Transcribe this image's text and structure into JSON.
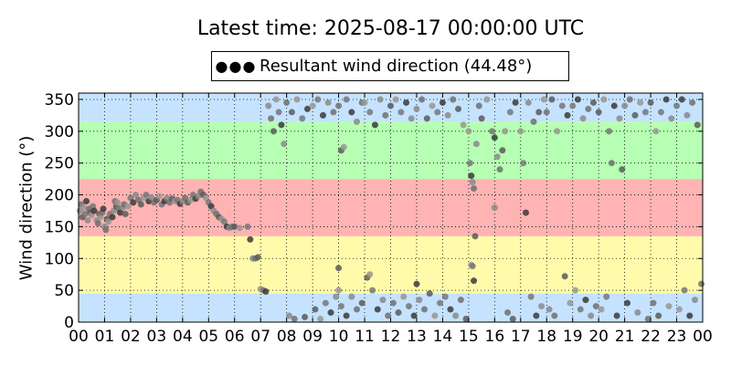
{
  "chart_data": {
    "type": "scatter",
    "title": "Latest time: 2025-08-17 00:00:00 UTC",
    "xlabel": "",
    "ylabel": "Wind direction (°)",
    "xlim": [
      0,
      24
    ],
    "ylim": [
      0,
      360
    ],
    "grid": true,
    "legend_position": "top-center",
    "xtick_labels": [
      "00",
      "01",
      "02",
      "03",
      "04",
      "05",
      "06",
      "07",
      "08",
      "09",
      "10",
      "11",
      "12",
      "13",
      "14",
      "15",
      "16",
      "17",
      "18",
      "19",
      "20",
      "21",
      "22",
      "23",
      "00"
    ],
    "yticks": [
      0,
      50,
      100,
      150,
      200,
      250,
      300,
      350
    ],
    "background_bands": [
      {
        "from": 0,
        "to": 45,
        "color": "#c5e3ff"
      },
      {
        "from": 45,
        "to": 135,
        "color": "#fffbaa"
      },
      {
        "from": 135,
        "to": 225,
        "color": "#ffb3b3"
      },
      {
        "from": 225,
        "to": 315,
        "color": "#b6ffb3"
      },
      {
        "from": 315,
        "to": 360,
        "color": "#c5e3ff"
      }
    ],
    "series": [
      {
        "name": "Resultant wind direction (44.48°)",
        "marker_color": "#6e6e6e",
        "points": [
          [
            0.05,
            175
          ],
          [
            0.1,
            185
          ],
          [
            0.15,
            165
          ],
          [
            0.2,
            180
          ],
          [
            0.25,
            170
          ],
          [
            0.3,
            190
          ],
          [
            0.35,
            160
          ],
          [
            0.4,
            178
          ],
          [
            0.45,
            172
          ],
          [
            0.5,
            168
          ],
          [
            0.55,
            182
          ],
          [
            0.6,
            175
          ],
          [
            0.7,
            160
          ],
          [
            0.75,
            155
          ],
          [
            0.8,
            170
          ],
          [
            0.85,
            165
          ],
          [
            0.9,
            172
          ],
          [
            0.95,
            178
          ],
          [
            1.0,
            150
          ],
          [
            1.05,
            145
          ],
          [
            1.1,
            162
          ],
          [
            1.15,
            158
          ],
          [
            1.2,
            170
          ],
          [
            1.3,
            165
          ],
          [
            1.35,
            175
          ],
          [
            1.4,
            190
          ],
          [
            1.45,
            182
          ],
          [
            1.5,
            188
          ],
          [
            1.55,
            178
          ],
          [
            1.6,
            172
          ],
          [
            1.7,
            180
          ],
          [
            1.75,
            185
          ],
          [
            1.8,
            170
          ],
          [
            1.9,
            182
          ],
          [
            2.0,
            195
          ],
          [
            2.1,
            188
          ],
          [
            2.2,
            200
          ],
          [
            2.3,
            192
          ],
          [
            2.4,
            185
          ],
          [
            2.5,
            195
          ],
          [
            2.6,
            200
          ],
          [
            2.7,
            190
          ],
          [
            2.8,
            196
          ],
          [
            2.9,
            188
          ],
          [
            3.0,
            192
          ],
          [
            3.1,
            198
          ],
          [
            3.2,
            185
          ],
          [
            3.3,
            190
          ],
          [
            3.4,
            195
          ],
          [
            3.5,
            188
          ],
          [
            3.6,
            194
          ],
          [
            3.7,
            190
          ],
          [
            3.8,
            192
          ],
          [
            3.9,
            186
          ],
          [
            4.0,
            190
          ],
          [
            4.1,
            195
          ],
          [
            4.2,
            188
          ],
          [
            4.3,
            192
          ],
          [
            4.4,
            200
          ],
          [
            4.5,
            194
          ],
          [
            4.6,
            198
          ],
          [
            4.7,
            205
          ],
          [
            4.8,
            200
          ],
          [
            4.9,
            195
          ],
          [
            5.0,
            188
          ],
          [
            5.1,
            182
          ],
          [
            5.2,
            175
          ],
          [
            5.3,
            170
          ],
          [
            5.4,
            165
          ],
          [
            5.5,
            162
          ],
          [
            5.6,
            158
          ],
          [
            5.7,
            150
          ],
          [
            5.8,
            148
          ],
          [
            5.9,
            150
          ],
          [
            6.0,
            150
          ],
          [
            6.2,
            148
          ],
          [
            6.5,
            150
          ],
          [
            6.6,
            130
          ],
          [
            6.7,
            100
          ],
          [
            6.8,
            100
          ],
          [
            6.9,
            102
          ],
          [
            7.0,
            52
          ],
          [
            7.1,
            50
          ],
          [
            7.2,
            48
          ],
          [
            7.3,
            340
          ],
          [
            7.4,
            320
          ],
          [
            7.5,
            300
          ],
          [
            7.6,
            350
          ],
          [
            7.7,
            330
          ],
          [
            7.8,
            310
          ],
          [
            7.9,
            280
          ],
          [
            8.0,
            345
          ],
          [
            8.2,
            330
          ],
          [
            8.4,
            350
          ],
          [
            8.6,
            320
          ],
          [
            8.8,
            335
          ],
          [
            8.1,
            10
          ],
          [
            8.3,
            5
          ],
          [
            8.7,
            8
          ],
          [
            9.0,
            340
          ],
          [
            9.2,
            350
          ],
          [
            9.4,
            325
          ],
          [
            9.6,
            345
          ],
          [
            9.8,
            330
          ],
          [
            9.1,
            20
          ],
          [
            9.3,
            5
          ],
          [
            9.5,
            30
          ],
          [
            9.7,
            15
          ],
          [
            9.9,
            40
          ],
          [
            10.0,
            340
          ],
          [
            10.1,
            270
          ],
          [
            10.2,
            275
          ],
          [
            10.3,
            350
          ],
          [
            10.5,
            330
          ],
          [
            10.7,
            315
          ],
          [
            10.9,
            345
          ],
          [
            10.0,
            85
          ],
          [
            10.0,
            50
          ],
          [
            10.1,
            25
          ],
          [
            10.3,
            10
          ],
          [
            10.5,
            40
          ],
          [
            10.7,
            20
          ],
          [
            10.9,
            30
          ],
          [
            11.0,
            345
          ],
          [
            11.2,
            330
          ],
          [
            11.4,
            310
          ],
          [
            11.6,
            350
          ],
          [
            11.8,
            325
          ],
          [
            11.1,
            70
          ],
          [
            11.2,
            75
          ],
          [
            11.3,
            50
          ],
          [
            11.5,
            20
          ],
          [
            11.7,
            35
          ],
          [
            11.9,
            10
          ],
          [
            12.0,
            340
          ],
          [
            12.2,
            350
          ],
          [
            12.4,
            330
          ],
          [
            12.6,
            345
          ],
          [
            12.8,
            320
          ],
          [
            12.1,
            30
          ],
          [
            12.3,
            15
          ],
          [
            12.5,
            40
          ],
          [
            12.7,
            25
          ],
          [
            12.9,
            10
          ],
          [
            13.0,
            335
          ],
          [
            13.2,
            350
          ],
          [
            13.4,
            320
          ],
          [
            13.6,
            340
          ],
          [
            13.8,
            330
          ],
          [
            13.0,
            60
          ],
          [
            13.1,
            35
          ],
          [
            13.3,
            20
          ],
          [
            13.5,
            45
          ],
          [
            13.7,
            10
          ],
          [
            13.9,
            30
          ],
          [
            14.0,
            345
          ],
          [
            14.2,
            325
          ],
          [
            14.4,
            350
          ],
          [
            14.6,
            335
          ],
          [
            14.8,
            310
          ],
          [
            14.1,
            40
          ],
          [
            14.3,
            20
          ],
          [
            14.5,
            10
          ],
          [
            14.7,
            35
          ],
          [
            14.9,
            5
          ],
          [
            15.0,
            300
          ],
          [
            15.05,
            250
          ],
          [
            15.1,
            230
          ],
          [
            15.15,
            220
          ],
          [
            15.2,
            210
          ],
          [
            15.25,
            135
          ],
          [
            15.1,
            90
          ],
          [
            15.15,
            88
          ],
          [
            15.2,
            65
          ],
          [
            15.3,
            280
          ],
          [
            15.4,
            340
          ],
          [
            15.5,
            320
          ],
          [
            15.7,
            350
          ],
          [
            15.9,
            300
          ],
          [
            16.0,
            290
          ],
          [
            16.1,
            260
          ],
          [
            16.2,
            240
          ],
          [
            16.3,
            270
          ],
          [
            16.4,
            300
          ],
          [
            16.6,
            330
          ],
          [
            16.8,
            345
          ],
          [
            16.0,
            180
          ],
          [
            16.5,
            15
          ],
          [
            16.7,
            5
          ],
          [
            17.0,
            300
          ],
          [
            17.1,
            250
          ],
          [
            17.2,
            172
          ],
          [
            17.3,
            345
          ],
          [
            17.5,
            315
          ],
          [
            17.7,
            330
          ],
          [
            17.9,
            350
          ],
          [
            17.4,
            40
          ],
          [
            17.6,
            10
          ],
          [
            17.8,
            25
          ],
          [
            18.0,
            330
          ],
          [
            18.2,
            350
          ],
          [
            18.4,
            300
          ],
          [
            18.6,
            340
          ],
          [
            18.8,
            325
          ],
          [
            18.1,
            20
          ],
          [
            18.3,
            10
          ],
          [
            18.7,
            72
          ],
          [
            18.9,
            30
          ],
          [
            19.0,
            340
          ],
          [
            19.2,
            350
          ],
          [
            19.4,
            320
          ],
          [
            19.6,
            335
          ],
          [
            19.8,
            345
          ],
          [
            19.1,
            50
          ],
          [
            19.3,
            20
          ],
          [
            19.5,
            35
          ],
          [
            19.7,
            10
          ],
          [
            19.9,
            25
          ],
          [
            20.0,
            330
          ],
          [
            20.2,
            350
          ],
          [
            20.4,
            300
          ],
          [
            20.6,
            340
          ],
          [
            20.8,
            320
          ],
          [
            20.5,
            250
          ],
          [
            20.9,
            240
          ],
          [
            20.1,
            20
          ],
          [
            20.3,
            40
          ],
          [
            20.7,
            10
          ],
          [
            21.0,
            340
          ],
          [
            21.2,
            350
          ],
          [
            21.4,
            325
          ],
          [
            21.6,
            345
          ],
          [
            21.8,
            330
          ],
          [
            21.1,
            30
          ],
          [
            21.5,
            15
          ],
          [
            21.9,
            5
          ],
          [
            22.0,
            345
          ],
          [
            22.2,
            300
          ],
          [
            22.4,
            330
          ],
          [
            22.6,
            350
          ],
          [
            22.8,
            320
          ],
          [
            22.1,
            30
          ],
          [
            22.3,
            10
          ],
          [
            22.7,
            25
          ],
          [
            23.0,
            340
          ],
          [
            23.2,
            350
          ],
          [
            23.4,
            325
          ],
          [
            23.6,
            345
          ],
          [
            23.8,
            310
          ],
          [
            23.1,
            20
          ],
          [
            23.3,
            50
          ],
          [
            23.5,
            10
          ],
          [
            23.7,
            35
          ],
          [
            23.95,
            60
          ]
        ]
      }
    ]
  }
}
